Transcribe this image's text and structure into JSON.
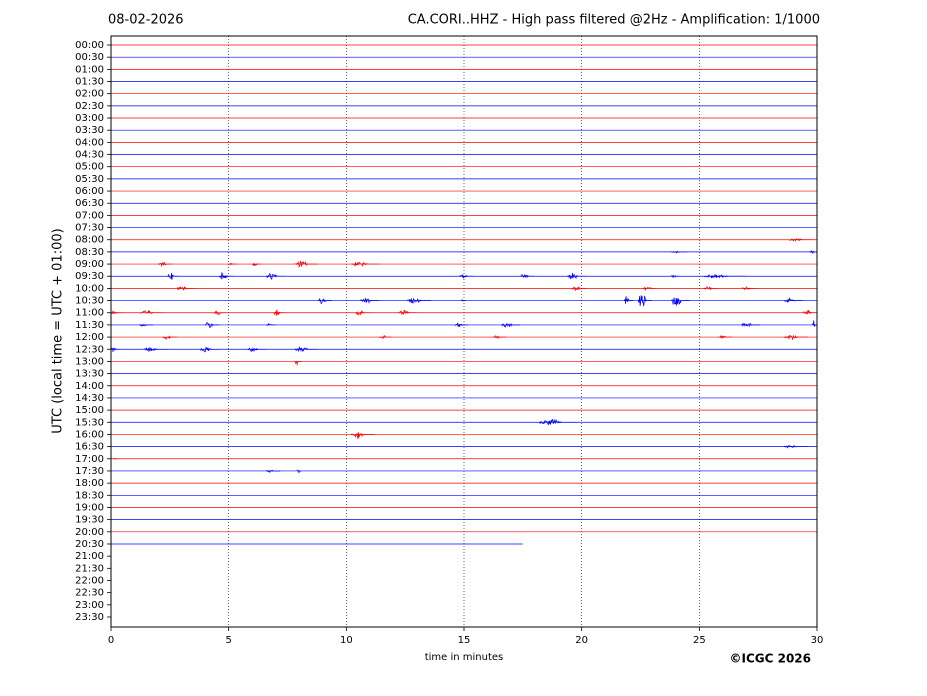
{
  "chart_data": {
    "type": "helicorder",
    "date": "08-02-2026",
    "title": "CA.CORI..HHZ - High pass filtered @2Hz - Amplification: 1/1000",
    "xlabel": "time in minutes",
    "ylabel": "UTC (local time = UTC + 01:00)",
    "credit": "©ICGC 2026",
    "xlim": [
      0,
      30
    ],
    "xticks": [
      0,
      5,
      10,
      15,
      20,
      25,
      30
    ],
    "grid": true,
    "colors": [
      "#ff0000",
      "#0000ff"
    ],
    "rows": [
      {
        "label": "00:00",
        "end": 30,
        "events": []
      },
      {
        "label": "00:30",
        "end": 30,
        "events": []
      },
      {
        "label": "01:00",
        "end": 30,
        "events": []
      },
      {
        "label": "01:30",
        "end": 30,
        "events": []
      },
      {
        "label": "02:00",
        "end": 30,
        "events": []
      },
      {
        "label": "02:30",
        "end": 30,
        "events": []
      },
      {
        "label": "03:00",
        "end": 30,
        "events": []
      },
      {
        "label": "03:30",
        "end": 30,
        "events": []
      },
      {
        "label": "04:00",
        "end": 30,
        "events": []
      },
      {
        "label": "04:30",
        "end": 30,
        "events": []
      },
      {
        "label": "05:00",
        "end": 30,
        "events": []
      },
      {
        "label": "05:30",
        "end": 30,
        "events": []
      },
      {
        "label": "06:00",
        "end": 30,
        "events": []
      },
      {
        "label": "06:30",
        "end": 30,
        "events": []
      },
      {
        "label": "07:00",
        "end": 30,
        "events": []
      },
      {
        "label": "07:30",
        "end": 30,
        "events": []
      },
      {
        "label": "08:00",
        "end": 30,
        "events": [
          {
            "x": [
              28.8,
              29.8
            ],
            "amplitude": 0.15
          }
        ]
      },
      {
        "label": "08:30",
        "end": 30,
        "events": [
          {
            "x": [
              23.8,
              24.5
            ],
            "amplitude": 0.1
          },
          {
            "x": [
              29.7,
              30
            ],
            "amplitude": 0.25
          }
        ]
      },
      {
        "label": "09:00",
        "end": 30,
        "events": [
          {
            "x": [
              2,
              2.6
            ],
            "amplitude": 0.25
          },
          {
            "x": [
              5,
              5.4
            ],
            "amplitude": 0.1
          },
          {
            "x": [
              6,
              6.4
            ],
            "amplitude": 0.25
          },
          {
            "x": [
              7.8,
              8.8
            ],
            "amplitude": 0.35
          },
          {
            "x": [
              10.2,
              11.4
            ],
            "amplitude": 0.25
          }
        ]
      },
      {
        "label": "09:30",
        "end": 30,
        "events": [
          {
            "x": [
              2.4,
              2.9
            ],
            "amplitude": 0.35
          },
          {
            "x": [
              4.6,
              5.2
            ],
            "amplitude": 0.35
          },
          {
            "x": [
              6.6,
              7.4
            ],
            "amplitude": 0.35
          },
          {
            "x": [
              14.8,
              15.4
            ],
            "amplitude": 0.25
          },
          {
            "x": [
              17.4,
              18
            ],
            "amplitude": 0.25
          },
          {
            "x": [
              19.4,
              20.2
            ],
            "amplitude": 0.35
          },
          {
            "x": [
              23.8,
              24.2
            ],
            "amplitude": 0.15
          },
          {
            "x": [
              25.2,
              27
            ],
            "amplitude": 0.25
          }
        ]
      },
      {
        "label": "10:00",
        "end": 30,
        "events": [
          {
            "x": [
              2.8,
              3.6
            ],
            "amplitude": 0.25
          },
          {
            "x": [
              19.6,
              20.2
            ],
            "amplitude": 0.25
          },
          {
            "x": [
              22.6,
              23.2
            ],
            "amplitude": 0.25
          },
          {
            "x": [
              25.2,
              25.8
            ],
            "amplitude": 0.25
          },
          {
            "x": [
              26.8,
              27.5
            ],
            "amplitude": 0.15
          }
        ]
      },
      {
        "label": "10:30",
        "end": 30,
        "events": [
          {
            "x": [
              8.8,
              9.4
            ],
            "amplitude": 0.35
          },
          {
            "x": [
              10.6,
              11.4
            ],
            "amplitude": 0.35
          },
          {
            "x": [
              12.6,
              13.6
            ],
            "amplitude": 0.25
          },
          {
            "x": [
              14.9,
              15.1
            ],
            "amplitude": 0.15
          },
          {
            "x": [
              21.8,
              22.2
            ],
            "amplitude": 0.5
          },
          {
            "x": [
              22.4,
              23
            ],
            "amplitude": 0.8
          },
          {
            "x": [
              23.8,
              24.6
            ],
            "amplitude": 0.6
          },
          {
            "x": [
              28.6,
              29.4
            ],
            "amplitude": 0.25
          }
        ]
      },
      {
        "label": "11:00",
        "end": 30,
        "events": [
          {
            "x": [
              0,
              0.5
            ],
            "amplitude": 0.25
          },
          {
            "x": [
              1.2,
              2.2
            ],
            "amplitude": 0.25
          },
          {
            "x": [
              4.4,
              4.9
            ],
            "amplitude": 0.25
          },
          {
            "x": [
              6.9,
              7.4
            ],
            "amplitude": 0.35
          },
          {
            "x": [
              10.4,
              11
            ],
            "amplitude": 0.25
          },
          {
            "x": [
              12.2,
              13
            ],
            "amplitude": 0.25
          },
          {
            "x": [
              29.4,
              30
            ],
            "amplitude": 0.25
          }
        ]
      },
      {
        "label": "11:30",
        "end": 30,
        "events": [
          {
            "x": [
              1.2,
              1.8
            ],
            "amplitude": 0.15
          },
          {
            "x": [
              4,
              4.6
            ],
            "amplitude": 0.35
          },
          {
            "x": [
              6.6,
              7
            ],
            "amplitude": 0.15
          },
          {
            "x": [
              14.6,
              15.2
            ],
            "amplitude": 0.25
          },
          {
            "x": [
              16.6,
              17.4
            ],
            "amplitude": 0.25
          },
          {
            "x": [
              26.8,
              27.6
            ],
            "amplitude": 0.25
          },
          {
            "x": [
              29.8,
              30
            ],
            "amplitude": 0.4
          }
        ]
      },
      {
        "label": "12:00",
        "end": 30,
        "events": [
          {
            "x": [
              2.2,
              2.8
            ],
            "amplitude": 0.25
          },
          {
            "x": [
              11.4,
              11.9
            ],
            "amplitude": 0.25
          },
          {
            "x": [
              16.2,
              16.8
            ],
            "amplitude": 0.15
          },
          {
            "x": [
              25.8,
              26.4
            ],
            "amplitude": 0.15
          },
          {
            "x": [
              28.6,
              29.6
            ],
            "amplitude": 0.25
          }
        ]
      },
      {
        "label": "12:30",
        "end": 30,
        "events": [
          {
            "x": [
              0,
              0.4
            ],
            "amplitude": 0.25
          },
          {
            "x": [
              1.4,
              2.4
            ],
            "amplitude": 0.25
          },
          {
            "x": [
              3.8,
              4.6
            ],
            "amplitude": 0.35
          },
          {
            "x": [
              5.8,
              6.6
            ],
            "amplitude": 0.25
          },
          {
            "x": [
              7.8,
              8.8
            ],
            "amplitude": 0.25
          }
        ]
      },
      {
        "label": "13:00",
        "end": 30,
        "events": [
          {
            "x": [
              7.8,
              8.1
            ],
            "amplitude": 0.35
          }
        ]
      },
      {
        "label": "13:30",
        "end": 30,
        "events": []
      },
      {
        "label": "14:00",
        "end": 30,
        "events": []
      },
      {
        "label": "14:30",
        "end": 30,
        "events": []
      },
      {
        "label": "15:00",
        "end": 30,
        "events": []
      },
      {
        "label": "15:30",
        "end": 30,
        "events": [
          {
            "x": [
              18.2,
              19.8
            ],
            "amplitude": 0.35
          }
        ]
      },
      {
        "label": "16:00",
        "end": 30,
        "events": [
          {
            "x": [
              10.2,
              11.2
            ],
            "amplitude": 0.4
          }
        ]
      },
      {
        "label": "16:30",
        "end": 30,
        "events": [
          {
            "x": [
              28.6,
              29.6
            ],
            "amplitude": 0.15
          }
        ]
      },
      {
        "label": "17:00",
        "end": 30,
        "events": [
          {
            "x": [
              0.1,
              0.3
            ],
            "amplitude": 0.15
          }
        ]
      },
      {
        "label": "17:30",
        "end": 30,
        "events": [
          {
            "x": [
              6.6,
              7.2
            ],
            "amplitude": 0.15
          },
          {
            "x": [
              7.9,
              8.1
            ],
            "amplitude": 0.4
          }
        ]
      },
      {
        "label": "18:00",
        "end": 30,
        "events": []
      },
      {
        "label": "18:30",
        "end": 30,
        "events": []
      },
      {
        "label": "19:00",
        "end": 30,
        "events": []
      },
      {
        "label": "19:30",
        "end": 30,
        "events": []
      },
      {
        "label": "20:00",
        "end": 30,
        "events": []
      },
      {
        "label": "20:30",
        "end": 17.5,
        "events": []
      },
      {
        "label": "21:00",
        "end": null,
        "events": []
      },
      {
        "label": "21:30",
        "end": null,
        "events": []
      },
      {
        "label": "22:00",
        "end": null,
        "events": []
      },
      {
        "label": "22:30",
        "end": null,
        "events": []
      },
      {
        "label": "23:00",
        "end": null,
        "events": []
      },
      {
        "label": "23:30",
        "end": null,
        "events": []
      }
    ]
  }
}
